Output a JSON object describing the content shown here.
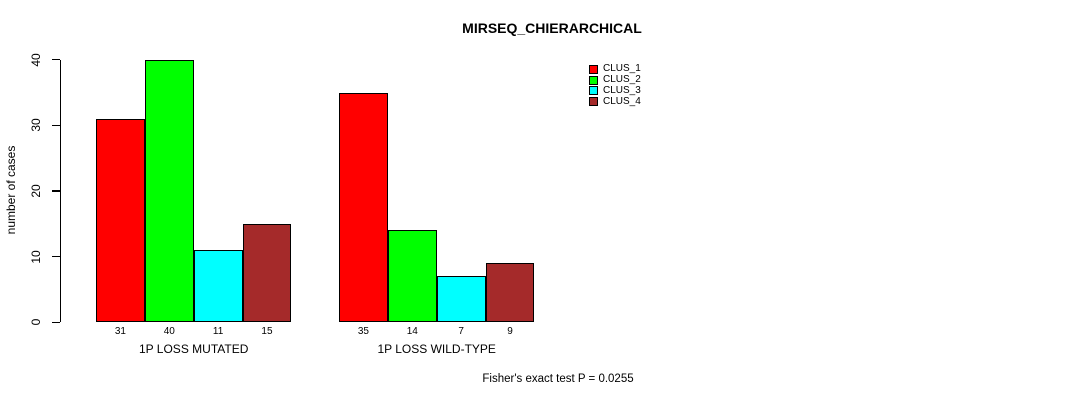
{
  "chart_data": {
    "type": "bar",
    "title": "MIRSEQ_CHIERARCHICAL",
    "ylabel": "number of cases",
    "xlabel": "",
    "ylim": [
      0,
      40
    ],
    "yticks": [
      0,
      10,
      20,
      30,
      40
    ],
    "categories": [
      "1P LOSS MUTATED",
      "1P LOSS WILD-TYPE"
    ],
    "series": [
      {
        "name": "CLUS_1",
        "color": "#ff0000",
        "values": [
          31,
          35
        ]
      },
      {
        "name": "CLUS_2",
        "color": "#00ff00",
        "values": [
          40,
          14
        ]
      },
      {
        "name": "CLUS_3",
        "color": "#00ffff",
        "values": [
          11,
          7
        ]
      },
      {
        "name": "CLUS_4",
        "color": "#a52a2a",
        "values": [
          15,
          9
        ]
      }
    ],
    "show_bar_values": true,
    "grid": false,
    "legend_position": "top-right",
    "axis_color": "#000000",
    "background": "#ffffff",
    "annotation": "Fisher's exact test P = 0.0255"
  }
}
